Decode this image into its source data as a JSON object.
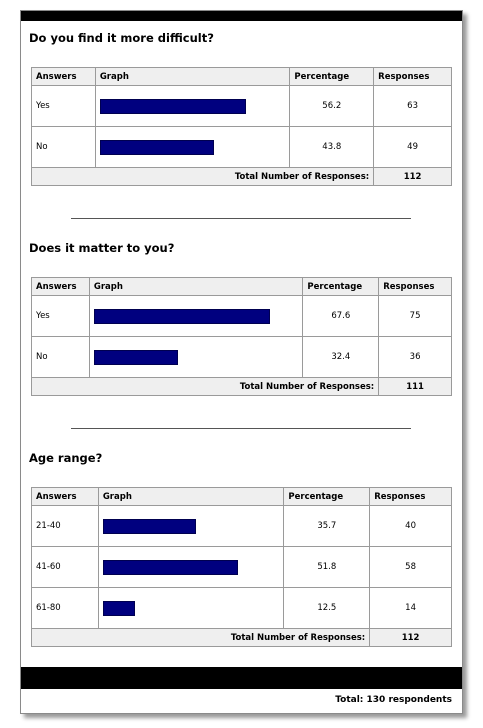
{
  "sections": [
    {
      "question": "Do you find it more difficult?",
      "headers": {
        "answers": "Answers",
        "graph": "Graph",
        "percentage": "Percentage",
        "responses": "Responses"
      },
      "rows": [
        {
          "answer": "Yes",
          "percentage": "56.2",
          "responses": "63"
        },
        {
          "answer": "No",
          "percentage": "43.8",
          "responses": "49"
        }
      ],
      "total_label": "Total Number of Responses:",
      "total_value": "112"
    },
    {
      "question": "Does it matter to you?",
      "headers": {
        "answers": "Answers",
        "graph": "Graph",
        "percentage": "Percentage",
        "responses": "Responses"
      },
      "rows": [
        {
          "answer": "Yes",
          "percentage": "67.6",
          "responses": "75"
        },
        {
          "answer": "No",
          "percentage": "32.4",
          "responses": "36"
        }
      ],
      "total_label": "Total Number of Responses:",
      "total_value": "111"
    },
    {
      "question": "Age range?",
      "headers": {
        "answers": "Answers",
        "graph": "Graph",
        "percentage": "Percentage",
        "responses": "Responses"
      },
      "rows": [
        {
          "answer": "21-40",
          "percentage": "35.7",
          "responses": "40"
        },
        {
          "answer": "41-60",
          "percentage": "51.8",
          "responses": "58"
        },
        {
          "answer": "61-80",
          "percentage": "12.5",
          "responses": "14"
        }
      ],
      "total_label": "Total Number of Responses:",
      "total_value": "112"
    }
  ],
  "footer": "Total: 130 respondents",
  "colors": {
    "bar": "#00007f",
    "header_bg": "#efefef",
    "bars_top_bottom": "#000000"
  }
}
